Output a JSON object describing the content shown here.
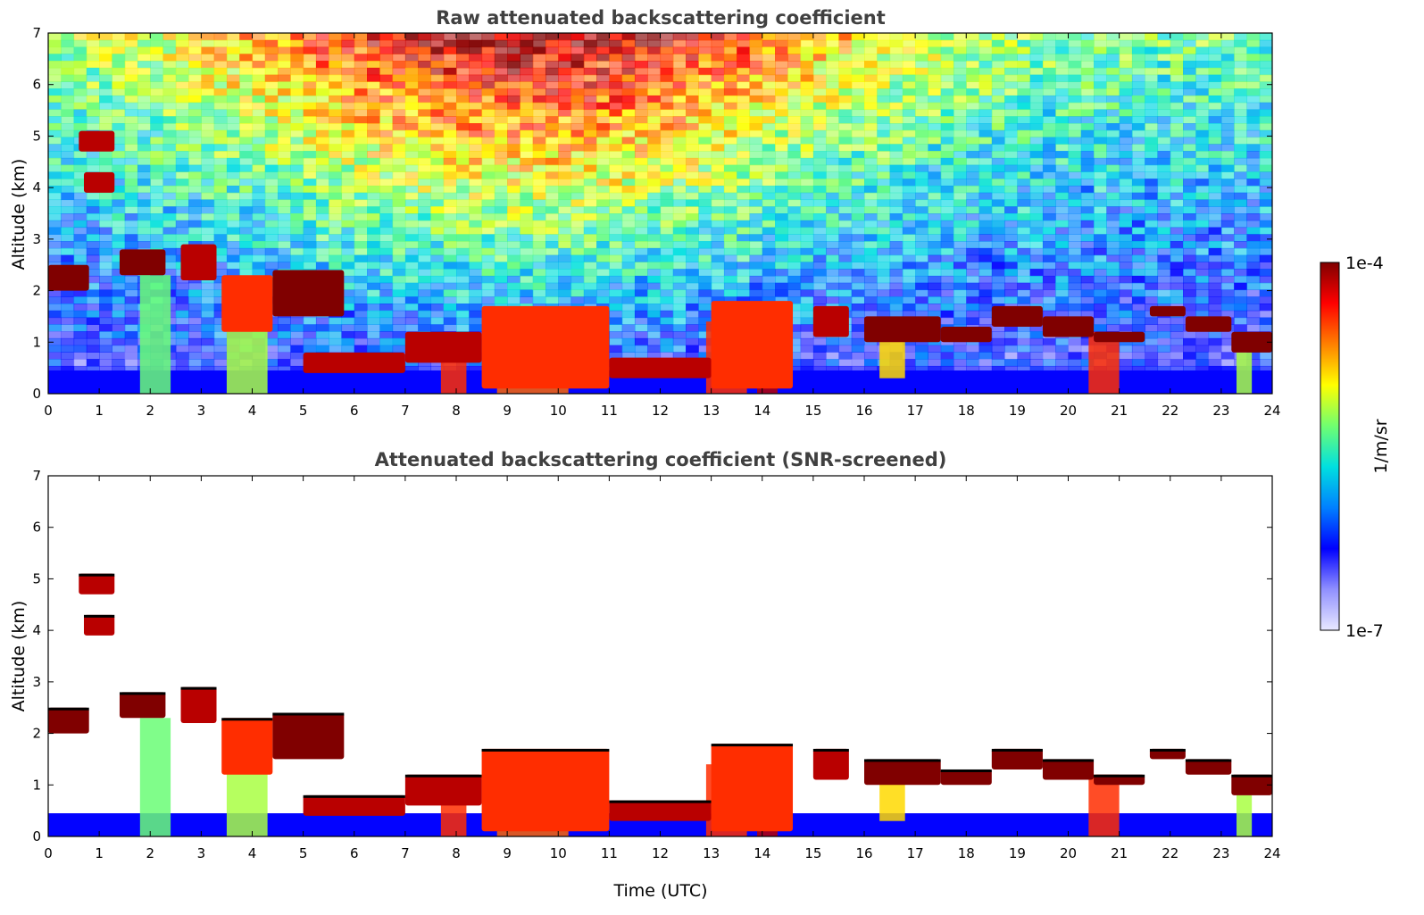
{
  "chart_data": [
    {
      "type": "heatmap",
      "title": "Raw attenuated backscattering coefficient",
      "xlabel": "",
      "ylabel": "Altitude (km)",
      "xlim": [
        0,
        24
      ],
      "ylim": [
        0,
        7
      ],
      "xticks": [
        "0",
        "1",
        "2",
        "3",
        "4",
        "5",
        "6",
        "7",
        "8",
        "9",
        "10",
        "11",
        "12",
        "13",
        "14",
        "15",
        "16",
        "17",
        "18",
        "19",
        "20",
        "21",
        "22",
        "23",
        "24"
      ],
      "yticks": [
        "0",
        "1",
        "2",
        "3",
        "4",
        "5",
        "6",
        "7"
      ],
      "grid": false,
      "noise_background": true,
      "layers": [
        {
          "x": [
            0,
            0.8
          ],
          "y": [
            2.0,
            2.5
          ],
          "level": 1.0
        },
        {
          "x": [
            0.6,
            1.3
          ],
          "y": [
            4.7,
            5.1
          ],
          "level": 0.95
        },
        {
          "x": [
            0.7,
            1.3
          ],
          "y": [
            3.9,
            4.3
          ],
          "level": 0.95
        },
        {
          "x": [
            1.4,
            2.3
          ],
          "y": [
            2.3,
            2.8
          ],
          "level": 1.0
        },
        {
          "x": [
            2.6,
            3.3
          ],
          "y": [
            2.2,
            2.9
          ],
          "level": 0.95
        },
        {
          "x": [
            3.4,
            4.4
          ],
          "y": [
            1.2,
            2.3
          ],
          "level": 0.85
        },
        {
          "x": [
            4.4,
            5.8
          ],
          "y": [
            1.5,
            2.4
          ],
          "level": 1.0
        },
        {
          "x": [
            5.0,
            7.0
          ],
          "y": [
            0.4,
            0.8
          ],
          "level": 0.95
        },
        {
          "x": [
            7.0,
            8.5
          ],
          "y": [
            0.6,
            1.2
          ],
          "level": 0.95
        },
        {
          "x": [
            8.5,
            11.0
          ],
          "y": [
            0.1,
            1.7
          ],
          "level": 0.85
        },
        {
          "x": [
            11.0,
            13.0
          ],
          "y": [
            0.3,
            0.7
          ],
          "level": 0.95
        },
        {
          "x": [
            13.0,
            14.6
          ],
          "y": [
            0.1,
            1.8
          ],
          "level": 0.85
        },
        {
          "x": [
            15.0,
            15.7
          ],
          "y": [
            1.1,
            1.7
          ],
          "level": 0.95
        },
        {
          "x": [
            16.0,
            17.5
          ],
          "y": [
            1.0,
            1.5
          ],
          "level": 1.0
        },
        {
          "x": [
            17.5,
            18.5
          ],
          "y": [
            1.0,
            1.3
          ],
          "level": 1.0
        },
        {
          "x": [
            18.5,
            19.5
          ],
          "y": [
            1.3,
            1.7
          ],
          "level": 1.0
        },
        {
          "x": [
            19.5,
            20.5
          ],
          "y": [
            1.1,
            1.5
          ],
          "level": 1.0
        },
        {
          "x": [
            20.5,
            21.5
          ],
          "y": [
            1.0,
            1.2
          ],
          "level": 1.0
        },
        {
          "x": [
            21.6,
            22.3
          ],
          "y": [
            1.5,
            1.7
          ],
          "level": 1.0
        },
        {
          "x": [
            22.3,
            23.2
          ],
          "y": [
            1.2,
            1.5
          ],
          "level": 1.0
        },
        {
          "x": [
            23.2,
            24.0
          ],
          "y": [
            0.8,
            1.2
          ],
          "level": 1.0
        }
      ],
      "fallstreaks": [
        {
          "x": [
            1.8,
            2.4
          ],
          "y": [
            0,
            2.3
          ],
          "level": 0.55
        },
        {
          "x": [
            3.5,
            4.3
          ],
          "y": [
            0,
            1.6
          ],
          "level": 0.6
        },
        {
          "x": [
            7.7,
            8.2
          ],
          "y": [
            0,
            1.0
          ],
          "level": 0.85
        },
        {
          "x": [
            8.8,
            10.2
          ],
          "y": [
            0,
            1.2
          ],
          "level": 0.8
        },
        {
          "x": [
            12.9,
            13.7
          ],
          "y": [
            0,
            1.4
          ],
          "level": 0.85
        },
        {
          "x": [
            13.9,
            14.3
          ],
          "y": [
            0,
            1.0
          ],
          "level": 0.95
        },
        {
          "x": [
            16.3,
            16.8
          ],
          "y": [
            0.3,
            1.2
          ],
          "level": 0.7
        },
        {
          "x": [
            20.4,
            21.0
          ],
          "y": [
            0,
            1.2
          ],
          "level": 0.85
        },
        {
          "x": [
            23.3,
            23.6
          ],
          "y": [
            0,
            0.8
          ],
          "level": 0.6
        }
      ],
      "boundary_layer": {
        "y": [
          0,
          0.45
        ],
        "level": 0.22
      }
    },
    {
      "type": "heatmap",
      "title": "Attenuated backscattering coefficient (SNR-screened)",
      "xlabel": "Time (UTC)",
      "ylabel": "Altitude (km)",
      "xlim": [
        0,
        24
      ],
      "ylim": [
        0,
        7
      ],
      "xticks": [
        "0",
        "1",
        "2",
        "3",
        "4",
        "5",
        "6",
        "7",
        "8",
        "9",
        "10",
        "11",
        "12",
        "13",
        "14",
        "15",
        "16",
        "17",
        "18",
        "19",
        "20",
        "21",
        "22",
        "23",
        "24"
      ],
      "yticks": [
        "0",
        "1",
        "2",
        "3",
        "4",
        "5",
        "6",
        "7"
      ],
      "grid": false,
      "noise_background": false,
      "layers": [
        {
          "x": [
            0,
            0.8
          ],
          "y": [
            2.0,
            2.5
          ],
          "level": 1.0
        },
        {
          "x": [
            0.6,
            1.3
          ],
          "y": [
            4.7,
            5.1
          ],
          "level": 0.95
        },
        {
          "x": [
            0.7,
            1.3
          ],
          "y": [
            3.9,
            4.3
          ],
          "level": 0.95
        },
        {
          "x": [
            1.4,
            2.3
          ],
          "y": [
            2.3,
            2.8
          ],
          "level": 1.0
        },
        {
          "x": [
            2.6,
            3.3
          ],
          "y": [
            2.2,
            2.9
          ],
          "level": 0.95
        },
        {
          "x": [
            3.4,
            4.4
          ],
          "y": [
            1.2,
            2.3
          ],
          "level": 0.85
        },
        {
          "x": [
            4.4,
            5.8
          ],
          "y": [
            1.5,
            2.4
          ],
          "level": 1.0
        },
        {
          "x": [
            5.0,
            7.0
          ],
          "y": [
            0.4,
            0.8
          ],
          "level": 0.95
        },
        {
          "x": [
            7.0,
            8.5
          ],
          "y": [
            0.6,
            1.2
          ],
          "level": 0.95
        },
        {
          "x": [
            8.5,
            11.0
          ],
          "y": [
            0.1,
            1.7
          ],
          "level": 0.85
        },
        {
          "x": [
            11.0,
            13.0
          ],
          "y": [
            0.3,
            0.7
          ],
          "level": 0.95
        },
        {
          "x": [
            13.0,
            14.6
          ],
          "y": [
            0.1,
            1.8
          ],
          "level": 0.85
        },
        {
          "x": [
            15.0,
            15.7
          ],
          "y": [
            1.1,
            1.7
          ],
          "level": 0.95
        },
        {
          "x": [
            16.0,
            17.5
          ],
          "y": [
            1.0,
            1.5
          ],
          "level": 1.0
        },
        {
          "x": [
            17.5,
            18.5
          ],
          "y": [
            1.0,
            1.3
          ],
          "level": 1.0
        },
        {
          "x": [
            18.5,
            19.5
          ],
          "y": [
            1.3,
            1.7
          ],
          "level": 1.0
        },
        {
          "x": [
            19.5,
            20.5
          ],
          "y": [
            1.1,
            1.5
          ],
          "level": 1.0
        },
        {
          "x": [
            20.5,
            21.5
          ],
          "y": [
            1.0,
            1.2
          ],
          "level": 1.0
        },
        {
          "x": [
            21.6,
            22.3
          ],
          "y": [
            1.5,
            1.7
          ],
          "level": 1.0
        },
        {
          "x": [
            22.3,
            23.2
          ],
          "y": [
            1.2,
            1.5
          ],
          "level": 1.0
        },
        {
          "x": [
            23.2,
            24.0
          ],
          "y": [
            0.8,
            1.2
          ],
          "level": 1.0
        }
      ],
      "fallstreaks": [
        {
          "x": [
            1.8,
            2.4
          ],
          "y": [
            0,
            2.3
          ],
          "level": 0.55
        },
        {
          "x": [
            3.5,
            4.3
          ],
          "y": [
            0,
            1.6
          ],
          "level": 0.6
        },
        {
          "x": [
            7.7,
            8.2
          ],
          "y": [
            0,
            1.0
          ],
          "level": 0.85
        },
        {
          "x": [
            8.8,
            10.2
          ],
          "y": [
            0,
            1.2
          ],
          "level": 0.8
        },
        {
          "x": [
            12.9,
            13.7
          ],
          "y": [
            0,
            1.4
          ],
          "level": 0.85
        },
        {
          "x": [
            13.9,
            14.3
          ],
          "y": [
            0,
            1.0
          ],
          "level": 0.95
        },
        {
          "x": [
            16.3,
            16.8
          ],
          "y": [
            0.3,
            1.2
          ],
          "level": 0.7
        },
        {
          "x": [
            20.4,
            21.0
          ],
          "y": [
            0,
            1.2
          ],
          "level": 0.85
        },
        {
          "x": [
            23.3,
            23.6
          ],
          "y": [
            0,
            0.8
          ],
          "level": 0.6
        }
      ],
      "boundary_layer": {
        "y": [
          0,
          0.45
        ],
        "level": 0.22
      }
    }
  ],
  "colorbar": {
    "label": "1/m/sr",
    "max_label": "1e-4",
    "min_label": "1e-7",
    "colors": [
      "#e8e8ff",
      "#9090ff",
      "#0000ff",
      "#0080ff",
      "#00e0e0",
      "#70ff70",
      "#ffff00",
      "#ff8000",
      "#ff0000",
      "#800000"
    ]
  }
}
